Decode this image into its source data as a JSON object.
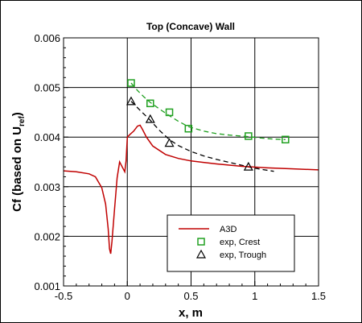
{
  "chart_data": {
    "type": "line",
    "title": "Top (Concave) Wall",
    "xlabel": "x, m",
    "ylabel": {
      "main": "Cf (based on U",
      "subscript": "ref",
      "close": ")"
    },
    "xlim": [
      -0.5,
      1.5
    ],
    "ylim": [
      0.001,
      0.006
    ],
    "x_ticks": [
      -0.5,
      0,
      0.5,
      1,
      1.5
    ],
    "x_tick_labels": [
      "-0.5",
      "0",
      "0.5",
      "1",
      "1.5"
    ],
    "y_ticks": [
      0.001,
      0.002,
      0.003,
      0.004,
      0.005,
      0.006
    ],
    "y_tick_labels": [
      "0.001",
      "0.002",
      "0.003",
      "0.004",
      "0.005",
      "0.006"
    ],
    "grid": true,
    "legend_position": "bottom-right",
    "series": [
      {
        "name": "A3D",
        "kind": "line",
        "color": "#c00000",
        "x": [
          -0.5,
          -0.4,
          -0.3,
          -0.25,
          -0.2,
          -0.17,
          -0.15,
          -0.14,
          -0.13,
          -0.12,
          -0.1,
          -0.08,
          -0.06,
          -0.04,
          -0.02,
          -0.01,
          0.0,
          0.02,
          0.05,
          0.08,
          0.1,
          0.12,
          0.15,
          0.2,
          0.3,
          0.4,
          0.5,
          0.7,
          0.9,
          1.1,
          1.3,
          1.5
        ],
        "y": [
          0.00332,
          0.0033,
          0.00326,
          0.0032,
          0.00298,
          0.00265,
          0.00215,
          0.00175,
          0.00165,
          0.0019,
          0.00255,
          0.00318,
          0.0035,
          0.0034,
          0.0033,
          0.00352,
          0.004,
          0.00405,
          0.00412,
          0.00422,
          0.00424,
          0.00415,
          0.004,
          0.00382,
          0.00365,
          0.00357,
          0.00352,
          0.00346,
          0.00341,
          0.00338,
          0.00336,
          0.00334
        ],
        "line_style": "solid"
      },
      {
        "name": "exp, Crest",
        "kind": "markers",
        "marker": "square",
        "color": "#20a020",
        "x": [
          0.03,
          0.18,
          0.33,
          0.48,
          0.95,
          1.24
        ],
        "y": [
          0.00509,
          0.00468,
          0.0045,
          0.00417,
          0.00402,
          0.00395
        ]
      },
      {
        "name": "exp, Crest fit",
        "kind": "line",
        "color": "#20a020",
        "line_style": "dashed",
        "legend": false,
        "x": [
          0.03,
          0.08,
          0.13,
          0.18,
          0.25,
          0.33,
          0.4,
          0.48,
          0.6,
          0.7,
          0.8,
          0.9,
          0.95,
          1.05,
          1.15,
          1.24
        ],
        "y": [
          0.00509,
          0.00494,
          0.00481,
          0.0047,
          0.00457,
          0.00443,
          0.00432,
          0.00421,
          0.00412,
          0.00407,
          0.00404,
          0.00402,
          0.00401,
          0.00398,
          0.00396,
          0.00395
        ]
      },
      {
        "name": "exp, Trough",
        "kind": "markers",
        "marker": "triangle",
        "color": "#000000",
        "x": [
          0.03,
          0.18,
          0.33,
          0.95
        ],
        "y": [
          0.00472,
          0.00436,
          0.00388,
          0.0034
        ]
      },
      {
        "name": "exp, Trough fit",
        "kind": "line",
        "color": "#000000",
        "line_style": "dashed",
        "legend": false,
        "x": [
          0.03,
          0.1,
          0.18,
          0.25,
          0.33,
          0.4,
          0.5,
          0.6,
          0.7,
          0.8,
          0.9,
          0.95,
          1.05,
          1.15
        ],
        "y": [
          0.00472,
          0.00454,
          0.00434,
          0.00414,
          0.00395,
          0.00383,
          0.00371,
          0.00362,
          0.00355,
          0.00349,
          0.00343,
          0.0034,
          0.00335,
          0.00331
        ]
      }
    ],
    "legend": [
      {
        "label": "A3D",
        "symbol": "line",
        "color": "#c00000"
      },
      {
        "label": "exp, Crest",
        "symbol": "square",
        "color": "#20a020"
      },
      {
        "label": "exp, Trough",
        "symbol": "triangle",
        "color": "#000000"
      }
    ]
  }
}
